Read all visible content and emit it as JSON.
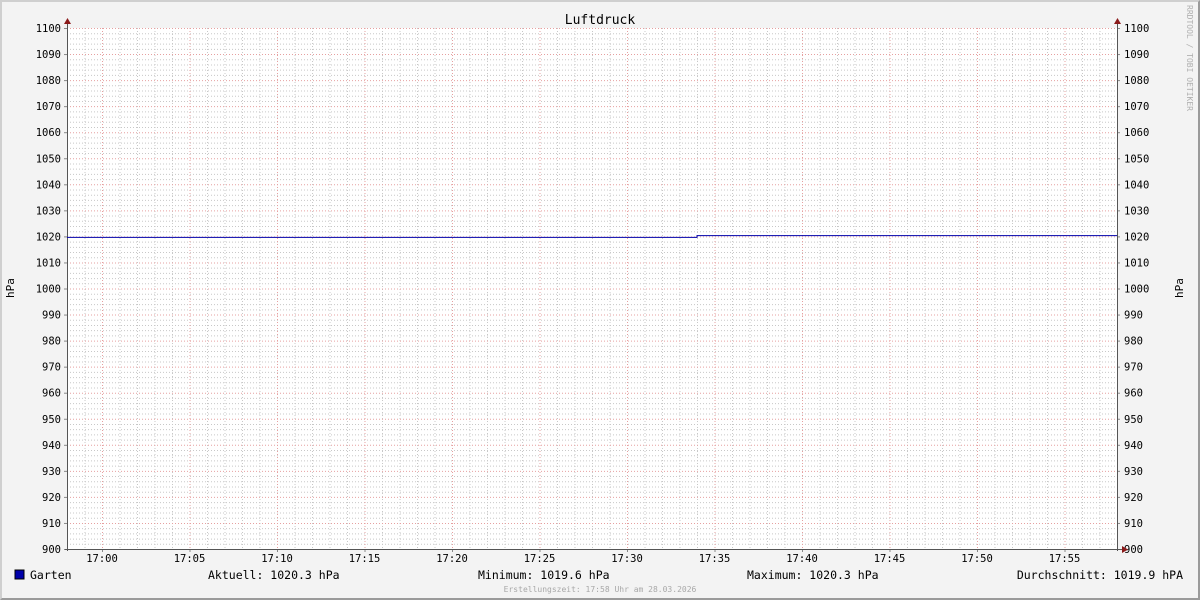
{
  "chart_data": {
    "type": "line",
    "title": "Luftdruck",
    "ylabel_left": "hPa",
    "ylabel_right": "hPa",
    "watermark": "RRDTOOL / TOBI OETIKER",
    "ylim": [
      900,
      1100
    ],
    "y_ticks": [
      900,
      910,
      920,
      930,
      940,
      950,
      960,
      970,
      980,
      990,
      1000,
      1010,
      1020,
      1030,
      1040,
      1050,
      1060,
      1070,
      1080,
      1090,
      1100
    ],
    "xlim": [
      "16:58",
      "17:58"
    ],
    "x_ticks": [
      "17:00",
      "17:05",
      "17:10",
      "17:15",
      "17:20",
      "17:25",
      "17:30",
      "17:35",
      "17:40",
      "17:45",
      "17:50",
      "17:55"
    ],
    "grid": true,
    "series": [
      {
        "name": "Garten",
        "color": "#0000aa",
        "points": [
          {
            "x": "16:58",
            "y": 1019.6
          },
          {
            "x": "17:34",
            "y": 1019.6
          },
          {
            "x": "17:34",
            "y": 1020.3
          },
          {
            "x": "17:58",
            "y": 1020.3
          }
        ]
      }
    ],
    "legend": {
      "series_label": "Garten",
      "current": "Aktuell: 1020.3 hPa",
      "minimum": "Minimum: 1019.6 hPa",
      "maximum": "Maximum: 1020.3 hPa",
      "average": "Durchschnitt: 1019.9 hPA"
    },
    "footer": "Erstellungszeit: 17:58 Uhr am 28.03.2026"
  }
}
